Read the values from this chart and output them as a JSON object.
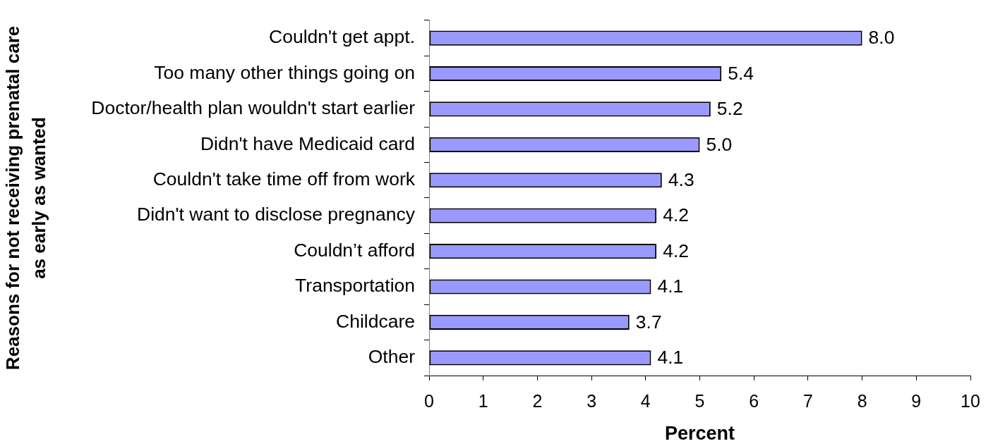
{
  "chart_data": {
    "type": "bar",
    "orientation": "horizontal",
    "xlabel": "Percent",
    "ylabel": "Reasons for not receiving prenatal care\nas early as wanted",
    "categories": [
      "Couldn't get appt.",
      "Too many other things going on",
      "Doctor/health plan wouldn't start earlier",
      "Didn't have Medicaid card",
      "Couldn't take time off from work",
      "Didn't want to disclose pregnancy",
      "Couldn’t afford",
      "Transportation",
      "Childcare",
      "Other"
    ],
    "values": [
      8.0,
      5.4,
      5.2,
      5.0,
      4.3,
      4.2,
      4.2,
      4.1,
      3.7,
      4.1
    ],
    "value_labels": [
      "8.0",
      "5.4",
      "5.2",
      "5.0",
      "4.3",
      "4.2",
      "4.2",
      "4.1",
      "3.7",
      "4.1"
    ],
    "color": "#9999ff",
    "xlim": [
      0,
      10
    ],
    "xticks": [
      0,
      1,
      2,
      3,
      4,
      5,
      6,
      7,
      8,
      9,
      10
    ],
    "grid": false,
    "legend": false
  }
}
